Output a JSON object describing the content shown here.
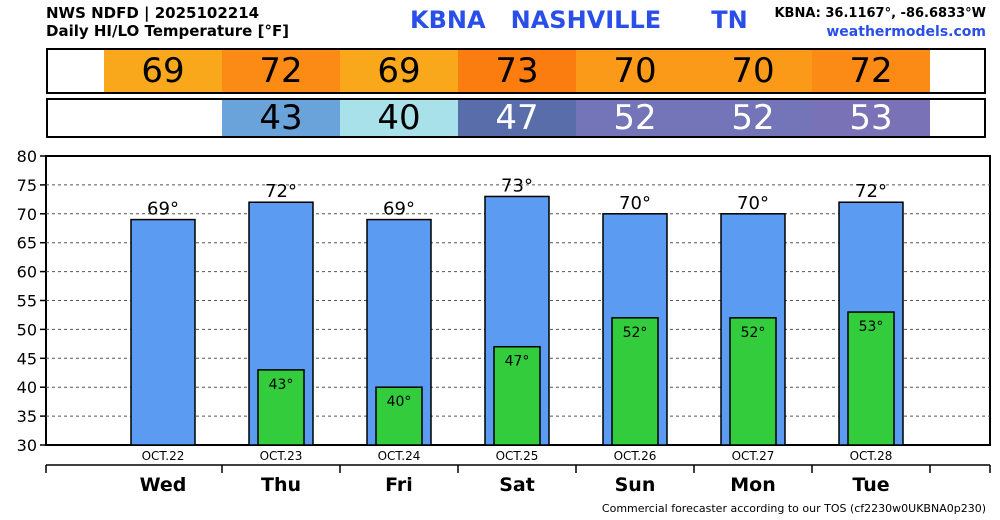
{
  "header": {
    "line1": "NWS NDFD | 2025102214",
    "line2": "Daily HI/LO Temperature [°F]",
    "station": "KBNA   NASHVILLE      TN",
    "coords": "KBNA: 36.1167°, -86.6833°W",
    "site": "weathermodels.com"
  },
  "strips": {
    "hi": [
      {
        "text": "69",
        "bg": "#f9a81c",
        "fg": "#000000"
      },
      {
        "text": "72",
        "bg": "#fb8b14",
        "fg": "#000000"
      },
      {
        "text": "69",
        "bg": "#f9a81c",
        "fg": "#000000"
      },
      {
        "text": "73",
        "bg": "#fb7d10",
        "fg": "#000000"
      },
      {
        "text": "70",
        "bg": "#fb9a18",
        "fg": "#000000"
      },
      {
        "text": "70",
        "bg": "#fb9a18",
        "fg": "#000000"
      },
      {
        "text": "72",
        "bg": "#fb8b14",
        "fg": "#000000"
      }
    ],
    "lo": [
      {
        "text": "",
        "bg": "#ffffff",
        "fg": "#000000"
      },
      {
        "text": "43",
        "bg": "#6aa3d9",
        "fg": "#000000"
      },
      {
        "text": "40",
        "bg": "#a8e1ea",
        "fg": "#000000"
      },
      {
        "text": "47",
        "bg": "#5a6dab",
        "fg": "#ffffff"
      },
      {
        "text": "52",
        "bg": "#7474b8",
        "fg": "#ffffff"
      },
      {
        "text": "52",
        "bg": "#7474b8",
        "fg": "#ffffff"
      },
      {
        "text": "53",
        "bg": "#7a72b6",
        "fg": "#ffffff"
      }
    ]
  },
  "colors": {
    "hi_bar": "#5b9bf2",
    "lo_bar": "#33cc3d"
  },
  "chart_data": {
    "type": "bar",
    "title": "Daily HI/LO Temperature [°F]",
    "categories": [
      "Wed",
      "Thu",
      "Fri",
      "Sat",
      "Sun",
      "Mon",
      "Tue"
    ],
    "dates": [
      "OCT.22",
      "OCT.23",
      "OCT.24",
      "OCT.25",
      "OCT.26",
      "OCT.27",
      "OCT.28"
    ],
    "series": [
      {
        "name": "HI",
        "values": [
          69,
          72,
          69,
          73,
          70,
          70,
          72
        ],
        "labels": [
          "69°",
          "72°",
          "69°",
          "73°",
          "70°",
          "70°",
          "72°"
        ]
      },
      {
        "name": "LO",
        "values": [
          null,
          43,
          40,
          47,
          52,
          52,
          53
        ],
        "labels": [
          "",
          "43°",
          "40°",
          "47°",
          "52°",
          "52°",
          "53°"
        ]
      }
    ],
    "ylim": [
      30,
      80
    ],
    "yticks": [
      30,
      35,
      40,
      45,
      50,
      55,
      60,
      65,
      70,
      75,
      80
    ],
    "grid": true
  },
  "footer": "Commercial forecaster according to our TOS (cf2230w0UKBNA0p230)"
}
